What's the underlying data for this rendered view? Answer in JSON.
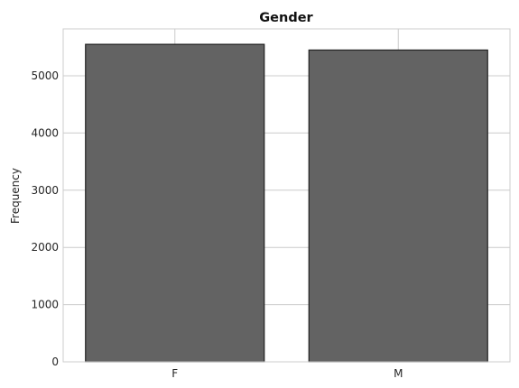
{
  "chart_data": {
    "type": "bar",
    "title": "Gender",
    "xlabel": "",
    "ylabel": "Frequency",
    "categories": [
      "F",
      "M"
    ],
    "values": [
      5550,
      5450
    ],
    "ylim": [
      0,
      5820
    ],
    "yticks": [
      0,
      1000,
      2000,
      3000,
      4000,
      5000
    ],
    "grid": true,
    "colors": {
      "bar_fill": "#636363",
      "bar_edge": "#222222",
      "grid": "#cccccc",
      "frame": "#cccccc"
    }
  }
}
